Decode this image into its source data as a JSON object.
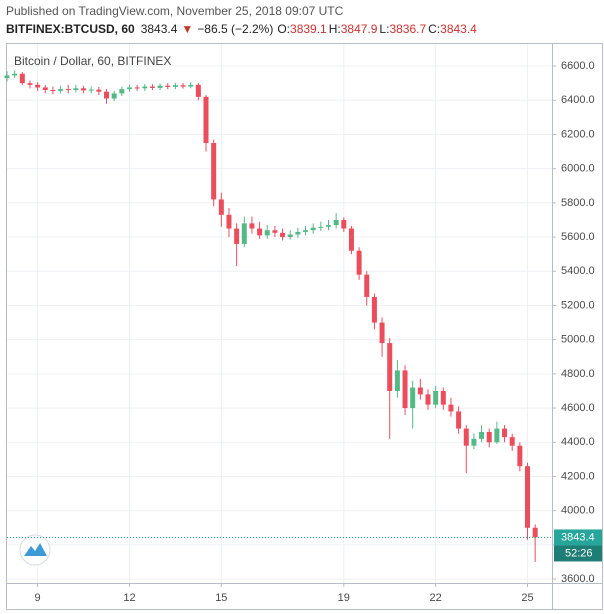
{
  "header": {
    "published": "Published on TradingView.com, November 25, 2018 09:07 UTC",
    "symbol": "BITFINEX:BTCUSD, 60",
    "last": "3843.4",
    "arrow": "▼",
    "change": "−86.5 (−2.2%)",
    "o_label": "O:",
    "o": "3839.1",
    "h_label": "H:",
    "h": "3847.9",
    "l_label": "L:",
    "l": "3836.7",
    "c_label": "C:",
    "c": "3843.4"
  },
  "chart_data": {
    "type": "candlestick",
    "title": "Bitcoin / Dollar, 60, BITFINEX",
    "up_color": "#53b987",
    "down_color": "#eb4d5c",
    "grid": true,
    "x": [
      8,
      8.25,
      8.5,
      8.75,
      9,
      9.25,
      9.5,
      9.75,
      10,
      10.25,
      10.5,
      10.75,
      11,
      11.25,
      11.5,
      11.75,
      12,
      12.25,
      12.5,
      12.75,
      13,
      13.25,
      13.5,
      13.75,
      14,
      14.25,
      14.5,
      14.75,
      15,
      15.25,
      15.5,
      15.75,
      16,
      16.25,
      16.5,
      16.75,
      17,
      17.25,
      17.5,
      17.75,
      18,
      18.25,
      18.5,
      18.75,
      19,
      19.25,
      19.5,
      19.75,
      20,
      20.25,
      20.5,
      20.75,
      21,
      21.25,
      21.5,
      21.75,
      22,
      22.25,
      22.5,
      22.75,
      23,
      23.25,
      23.5,
      23.75,
      24,
      24.25,
      24.5,
      24.75,
      25,
      25.25
    ],
    "open": [
      6530,
      6545,
      6555,
      6500,
      6490,
      6475,
      6460,
      6455,
      6465,
      6460,
      6470,
      6458,
      6462,
      6450,
      6410,
      6440,
      6465,
      6475,
      6470,
      6480,
      6472,
      6485,
      6478,
      6488,
      6480,
      6490,
      6420,
      6150,
      5820,
      5730,
      5650,
      5560,
      5680,
      5650,
      5610,
      5640,
      5625,
      5600,
      5615,
      5630,
      5640,
      5655,
      5660,
      5670,
      5700,
      5650,
      5520,
      5380,
      5250,
      5100,
      4980,
      4700,
      4820,
      4600,
      4720,
      4680,
      4620,
      4700,
      4620,
      4580,
      4480,
      4380,
      4420,
      4460,
      4400,
      4480,
      4430,
      4380,
      4260,
      3900
    ],
    "high": [
      6570,
      6575,
      6565,
      6515,
      6505,
      6490,
      6480,
      6485,
      6490,
      6490,
      6485,
      6480,
      6478,
      6465,
      6455,
      6480,
      6492,
      6490,
      6495,
      6494,
      6498,
      6500,
      6502,
      6500,
      6505,
      6500,
      6430,
      6170,
      5860,
      5770,
      5680,
      5720,
      5720,
      5690,
      5670,
      5665,
      5650,
      5640,
      5655,
      5665,
      5680,
      5690,
      5700,
      5740,
      5715,
      5665,
      5540,
      5400,
      5270,
      5130,
      5010,
      4880,
      4850,
      4760,
      4770,
      4710,
      4730,
      4720,
      4660,
      4610,
      4500,
      4450,
      4500,
      4480,
      4520,
      4500,
      4450,
      4400,
      4280,
      3920
    ],
    "low": [
      6510,
      6530,
      6490,
      6470,
      6455,
      6440,
      6435,
      6440,
      6440,
      6445,
      6440,
      6440,
      6430,
      6380,
      6395,
      6425,
      6450,
      6455,
      6455,
      6460,
      6460,
      6465,
      6465,
      6468,
      6470,
      6400,
      6100,
      5780,
      5660,
      5600,
      5430,
      5540,
      5620,
      5590,
      5590,
      5600,
      5580,
      5585,
      5595,
      5610,
      5620,
      5635,
      5640,
      5650,
      5630,
      5500,
      5350,
      5200,
      5060,
      4900,
      4420,
      4660,
      4560,
      4480,
      4650,
      4590,
      4600,
      4590,
      4550,
      4450,
      4220,
      4360,
      4400,
      4370,
      4390,
      4400,
      4350,
      4230,
      3830,
      3700
    ],
    "close": [
      6545,
      6555,
      6500,
      6490,
      6475,
      6460,
      6455,
      6465,
      6460,
      6470,
      6458,
      6462,
      6450,
      6410,
      6440,
      6465,
      6475,
      6470,
      6480,
      6472,
      6485,
      6478,
      6488,
      6480,
      6490,
      6420,
      6150,
      5820,
      5730,
      5650,
      5560,
      5680,
      5650,
      5610,
      5640,
      5625,
      5600,
      5615,
      5630,
      5640,
      5655,
      5660,
      5670,
      5700,
      5650,
      5520,
      5380,
      5250,
      5100,
      4980,
      4700,
      4820,
      4600,
      4720,
      4680,
      4620,
      4700,
      4620,
      4580,
      4480,
      4380,
      4420,
      4460,
      4400,
      4480,
      4430,
      4380,
      4260,
      3900,
      3843.4
    ],
    "xlim": [
      8,
      25.8
    ],
    "xticks": [
      9,
      12,
      15,
      19,
      22,
      25
    ],
    "ylim": [
      3577,
      6729
    ],
    "yticks": [
      {
        "value": 3600,
        "label": "3600.0"
      },
      {
        "value": 3800,
        "label": "3800.0"
      },
      {
        "value": 4000,
        "label": "4000.0"
      },
      {
        "value": 4200,
        "label": "4200.0"
      },
      {
        "value": 4400,
        "label": "4400.0"
      },
      {
        "value": 4600,
        "label": "4600.0"
      },
      {
        "value": 4800,
        "label": "4800.0"
      },
      {
        "value": 5000,
        "label": "5000.0"
      },
      {
        "value": 5200,
        "label": "5200.0"
      },
      {
        "value": 5400,
        "label": "5400.0"
      },
      {
        "value": 5600,
        "label": "5600.0"
      },
      {
        "value": 5800,
        "label": "5800.0"
      },
      {
        "value": 6000,
        "label": "6000.0"
      },
      {
        "value": 6200,
        "label": "6200.0"
      },
      {
        "value": 6400,
        "label": "6400.0"
      },
      {
        "value": 6600,
        "label": "6600.0"
      }
    ],
    "last_price": 3843.4,
    "last_price_color": "#26a69a",
    "countdown": "52:26"
  }
}
